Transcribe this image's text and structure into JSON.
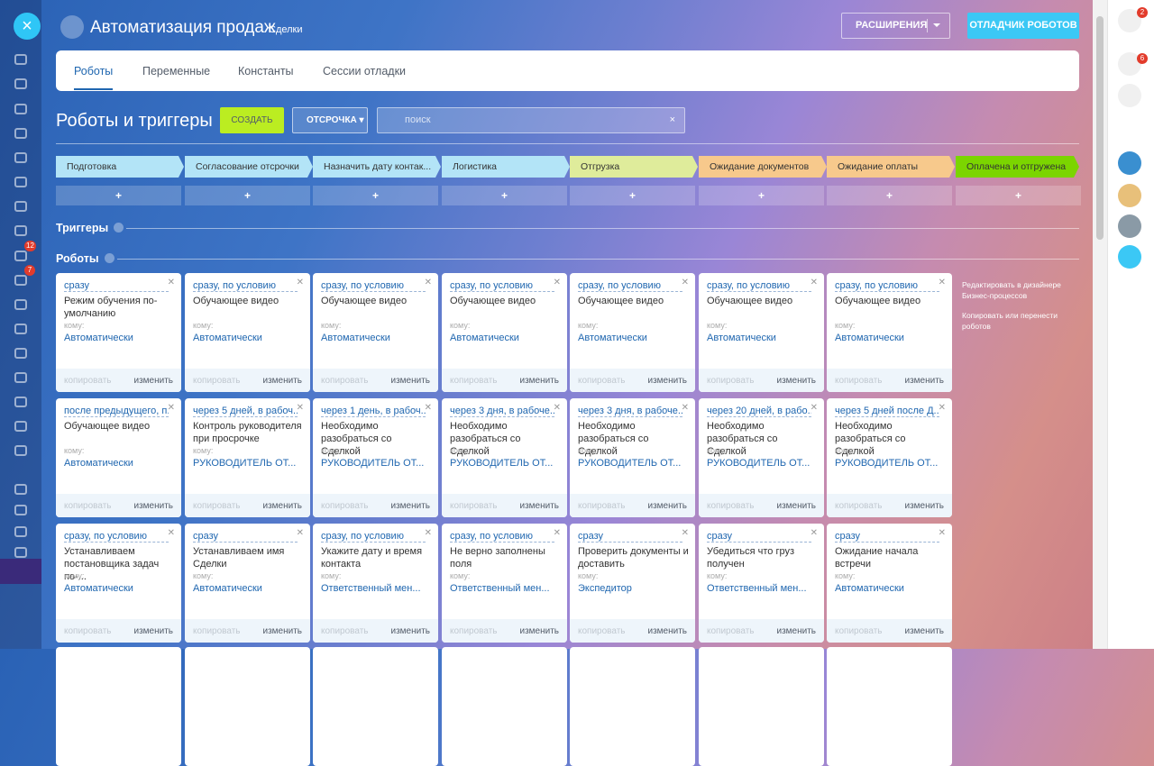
{
  "header": {
    "title": "Автоматизация продаж",
    "subtitle": "Сделки",
    "extensions_button": "РАСШИРЕНИЯ",
    "debugger_button": "ОТЛАДЧИК РОБОТОВ"
  },
  "tabs": [
    "Роботы",
    "Переменные",
    "Константы",
    "Сессии отладки"
  ],
  "toolbar": {
    "heading": "Роботы и триггеры",
    "create_button": "СОЗДАТЬ",
    "delay_button": "ОТСРОЧКА",
    "search_placeholder": "поиск"
  },
  "stages": [
    {
      "name": "Подготовка",
      "color": "#b3e4f7"
    },
    {
      "name": "Согласование отсрочки",
      "color": "#b3e4f7"
    },
    {
      "name": "Назначить дату контак...",
      "color": "#b3e4f7"
    },
    {
      "name": "Логистика",
      "color": "#b3e4f7"
    },
    {
      "name": "Отгрузка",
      "color": "#dfec9b"
    },
    {
      "name": "Ожидание документов",
      "color": "#f7c98c"
    },
    {
      "name": "Ожидание оплаты",
      "color": "#f7c98c"
    },
    {
      "name": "Оплачена и отгружена",
      "color": "#7bd500"
    }
  ],
  "add_label": "+",
  "sections": {
    "triggers": "Триггеры",
    "robots": "Роботы"
  },
  "card_labels": {
    "to": "кому:",
    "copy": "копировать",
    "edit": "изменить"
  },
  "robots": [
    [
      {
        "condition": "сразу",
        "title": "Режим обучения по-умолчанию",
        "assignee": "Автоматически"
      },
      {
        "condition": "сразу, по условию",
        "title": "Обучающее видео",
        "assignee": "Автоматически"
      },
      {
        "condition": "сразу, по условию",
        "title": "Обучающее видео",
        "assignee": "Автоматически"
      },
      {
        "condition": "сразу, по условию",
        "title": "Обучающее видео",
        "assignee": "Автоматически"
      },
      {
        "condition": "сразу, по условию",
        "title": "Обучающее видео",
        "assignee": "Автоматически"
      },
      {
        "condition": "сразу, по условию",
        "title": "Обучающее видео",
        "assignee": "Автоматически"
      },
      {
        "condition": "сразу, по условию",
        "title": "Обучающее видео",
        "assignee": "Автоматически"
      }
    ],
    [
      {
        "condition": "после предыдущего, п...",
        "title": "Обучающее видео",
        "assignee": "Автоматически"
      },
      {
        "condition": "через 5 дней, в рабоч...",
        "title": "Контроль руководителя при просрочке",
        "assignee": "РУКОВОДИТЕЛЬ ОТ..."
      },
      {
        "condition": "через 1 день, в рабоч...",
        "title": "Необходимо разобраться со Сделкой",
        "assignee": "РУКОВОДИТЕЛЬ ОТ..."
      },
      {
        "condition": "через 3 дня, в рабоче...",
        "title": "Необходимо разобраться со Сделкой",
        "assignee": "РУКОВОДИТЕЛЬ ОТ..."
      },
      {
        "condition": "через 3 дня, в рабоче...",
        "title": "Необходимо разобраться со Сделкой",
        "assignee": "РУКОВОДИТЕЛЬ ОТ..."
      },
      {
        "condition": "через 20 дней, в рабо...",
        "title": "Необходимо разобраться со Сделкой",
        "assignee": "РУКОВОДИТЕЛЬ ОТ..."
      },
      {
        "condition": "через 5 дней после Д...",
        "title": "Необходимо разобраться со Сделкой",
        "assignee": "РУКОВОДИТЕЛЬ ОТ..."
      }
    ],
    [
      {
        "condition": "сразу, по условию",
        "title": "Устанавливаем постановщика задач по-...",
        "assignee": "Автоматически"
      },
      {
        "condition": "сразу",
        "title": "Устанавливаем имя Сделки",
        "assignee": "Автоматически"
      },
      {
        "condition": "сразу, по условию",
        "title": "Укажите дату и время контакта",
        "assignee": "Ответственный мен..."
      },
      {
        "condition": "сразу, по условию",
        "title": "Не верно заполнены поля",
        "assignee": "Ответственный мен..."
      },
      {
        "condition": "сразу",
        "title": "Проверить документы и доставить",
        "assignee": "Экспедитор"
      },
      {
        "condition": "сразу",
        "title": "Убедиться что груз получен",
        "assignee": "Ответственный мен..."
      },
      {
        "condition": "сразу",
        "title": "Ожидание начала встречи",
        "assignee": "Автоматически"
      }
    ]
  ],
  "side_links": [
    "Редактировать в дизайнере Бизнес-процессов",
    "Копировать или перенести роботов"
  ],
  "badges": {
    "tasks": "12",
    "feed": "7",
    "help": "2",
    "notifications": "6"
  }
}
